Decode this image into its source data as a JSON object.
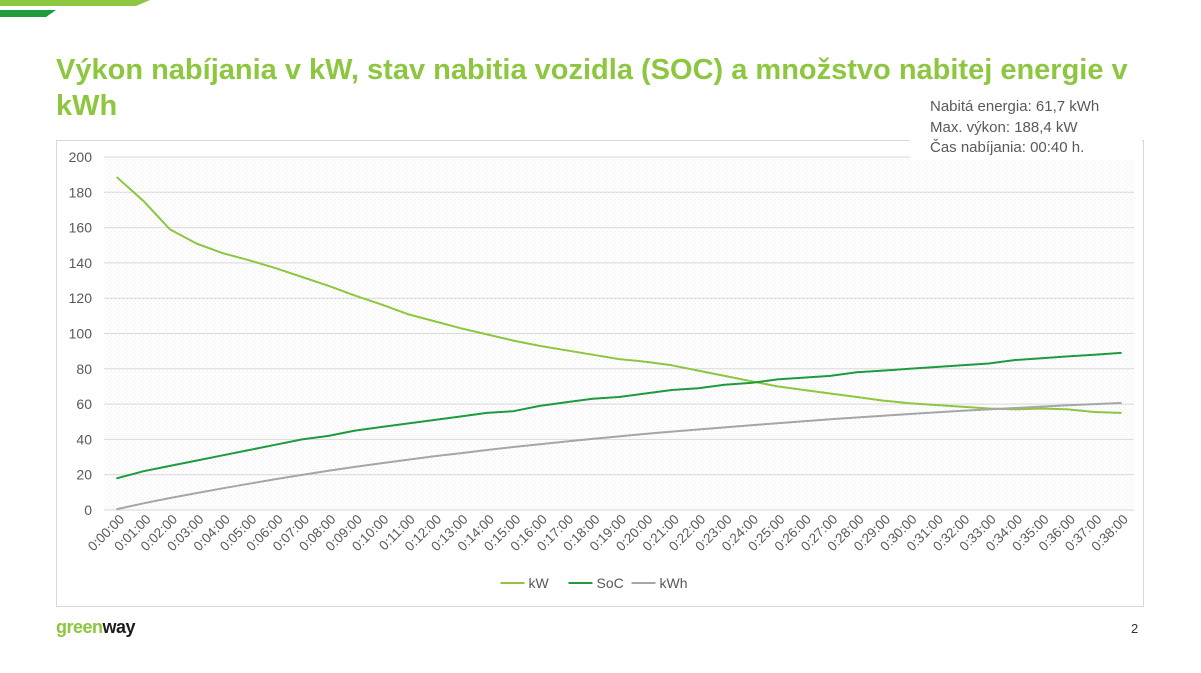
{
  "header": {
    "title": "Výkon nabíjania v kW, stav nabitia vozidla (SOC) a množstvo nabitej energie v kWh"
  },
  "info": {
    "lines": [
      "Nabitá energia: 61,7 kWh",
      "Max. výkon: 188,4 kW",
      "Čas nabíjania: 00:40 h."
    ]
  },
  "footer": {
    "logo_part1": "green",
    "logo_part2": "way",
    "page_number": "2"
  },
  "colors": {
    "brand_green": "#8dc63f",
    "kw_line": "#8dc63f",
    "soc_line": "#1e9b3e",
    "kwh_line": "#a6a6a6"
  },
  "chart_data": {
    "type": "line",
    "categories": [
      "0:00:00",
      "0:01:00",
      "0:02:00",
      "0:03:00",
      "0:04:00",
      "0:05:00",
      "0:06:00",
      "0:07:00",
      "0:08:00",
      "0:09:00",
      "0:10:00",
      "0:11:00",
      "0:12:00",
      "0:13:00",
      "0:14:00",
      "0:15:00",
      "0:16:00",
      "0:17:00",
      "0:18:00",
      "0:19:00",
      "0:20:00",
      "0:21:00",
      "0:22:00",
      "0:23:00",
      "0:24:00",
      "0:25:00",
      "0:26:00",
      "0:27:00",
      "0:28:00",
      "0:29:00",
      "0:30:00",
      "0:31:00",
      "0:32:00",
      "0:33:00",
      "0:34:00",
      "0:35:00",
      "0:36:00",
      "0:37:00",
      "0:38:00"
    ],
    "series": [
      {
        "name": "kW",
        "color": "#8dc63f",
        "values": [
          188.4,
          175,
          159,
          151,
          145.5,
          141.5,
          137,
          132,
          127,
          121.5,
          116.5,
          111,
          107,
          103,
          99.5,
          96,
          93,
          90.5,
          88,
          85.5,
          84,
          82,
          79,
          76,
          73,
          70,
          68,
          66,
          64,
          62,
          60.5,
          59.5,
          58.5,
          57.5,
          57,
          57.5,
          57,
          55.5,
          55
        ]
      },
      {
        "name": "SoC",
        "color": "#1e9b3e",
        "values": [
          18,
          22,
          25,
          28,
          31,
          34,
          37,
          40,
          42,
          45,
          47,
          49,
          51,
          53,
          55,
          56,
          59,
          61,
          63,
          64,
          66,
          68,
          69,
          71,
          72,
          74,
          75,
          76,
          78,
          79,
          80,
          81,
          82,
          83,
          85,
          86,
          87,
          88,
          89
        ]
      },
      {
        "name": "kWh",
        "color": "#a6a6a6",
        "values": [
          0.5,
          3.8,
          6.8,
          9.6,
          12.3,
          14.9,
          17.5,
          19.9,
          22.2,
          24.4,
          26.5,
          28.5,
          30.4,
          32.2,
          34,
          35.7,
          37.3,
          38.8,
          40.3,
          41.7,
          43.1,
          44.4,
          45.6,
          46.8,
          48,
          49.2,
          50.3,
          51.4,
          52.4,
          53.4,
          54.4,
          55.3,
          56.2,
          57,
          57.8,
          58.6,
          59.3,
          60,
          60.6
        ]
      }
    ],
    "ylim": [
      0,
      200
    ],
    "yticks": [
      0,
      20,
      40,
      60,
      80,
      100,
      120,
      140,
      160,
      180,
      200
    ],
    "xlabel": "",
    "ylabel": "",
    "grid": true,
    "legend": "bottom"
  }
}
